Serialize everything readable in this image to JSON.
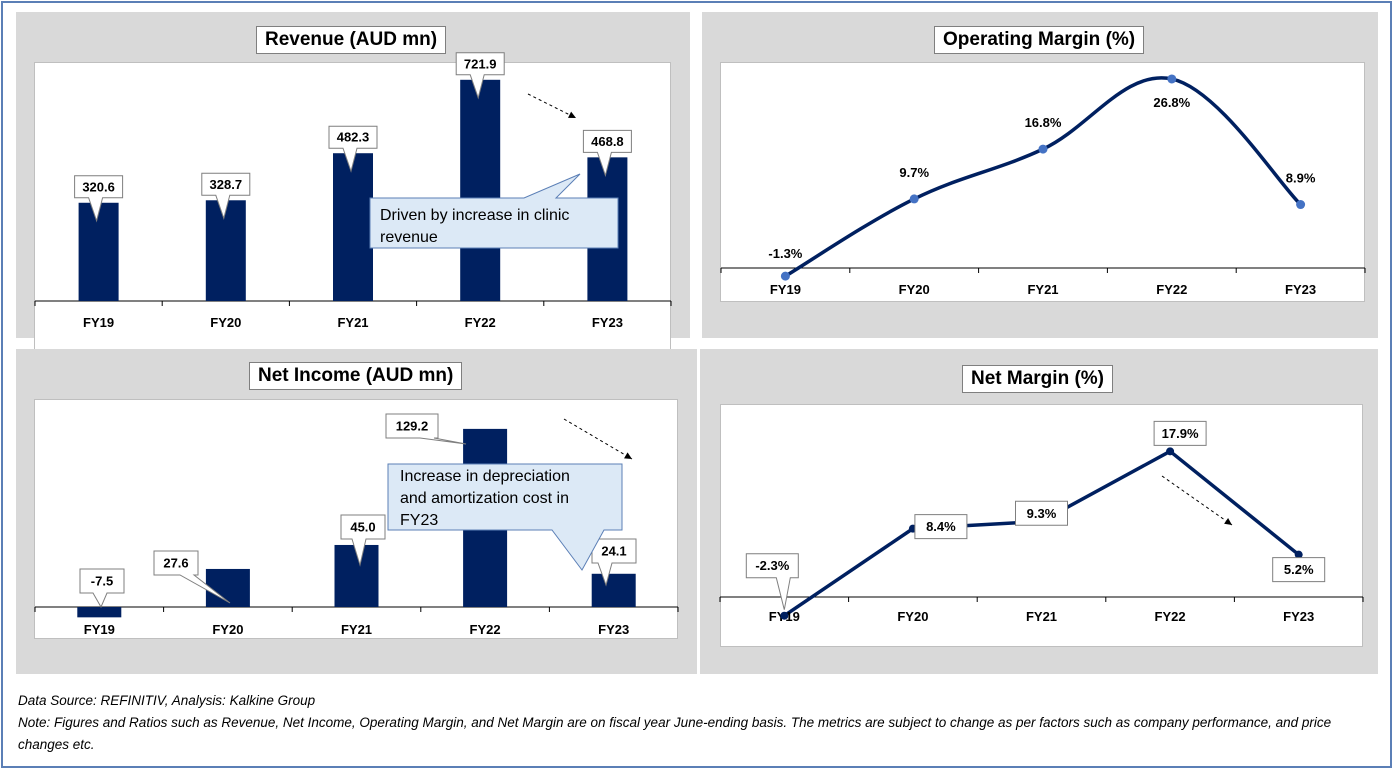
{
  "colors": {
    "bar": "#002060",
    "line": "#002060",
    "marker": "#4472c4",
    "callout": "#dce9f6",
    "callout_border": "#5b7fb6",
    "panel": "#d9d9d9"
  },
  "footer": {
    "source": "Data Source: REFINITIV, Analysis: Kalkine Group",
    "note": "Note: Figures and Ratios such as Revenue, Net Income, Operating Margin, and Net Margin are on fiscal year June-ending basis. The metrics are subject to change as per factors such as company performance, and price changes etc."
  },
  "chart_data": [
    {
      "id": "revenue",
      "type": "bar",
      "title": "Revenue (AUD mn)",
      "categories": [
        "FY19",
        "FY20",
        "FY21",
        "FY22",
        "FY23"
      ],
      "values": [
        320.6,
        328.7,
        482.3,
        721.9,
        468.8
      ],
      "labels": [
        "320.6",
        "328.7",
        "482.3",
        "721.9",
        "468.8"
      ],
      "ylim": [
        0,
        780
      ],
      "grid": false,
      "annotation": "Driven by increase in clinic revenue"
    },
    {
      "id": "operating_margin",
      "type": "line",
      "title": "Operating Margin (%)",
      "categories": [
        "FY19",
        "FY20",
        "FY21",
        "FY22",
        "FY23"
      ],
      "values": [
        -1.3,
        9.7,
        16.8,
        26.8,
        8.9
      ],
      "labels": [
        "-1.3%",
        "9.7%",
        "16.8%",
        "26.8%",
        "8.9%"
      ],
      "ylim": [
        -3,
        29
      ],
      "smooth": true,
      "grid": false
    },
    {
      "id": "net_income",
      "type": "bar",
      "title": "Net Income (AUD mn)",
      "categories": [
        "FY19",
        "FY20",
        "FY21",
        "FY22",
        "FY23"
      ],
      "values": [
        -7.5,
        27.6,
        45.0,
        129.2,
        24.1
      ],
      "labels": [
        "-7.5",
        "27.6",
        "45.0",
        "129.2",
        "24.1"
      ],
      "ylim": [
        -12,
        140
      ],
      "grid": false,
      "annotation": "Increase in depreciation and amortization cost in FY23"
    },
    {
      "id": "net_margin",
      "type": "line",
      "title": "Net Margin (%)",
      "categories": [
        "FY19",
        "FY20",
        "FY21",
        "FY22",
        "FY23"
      ],
      "values": [
        -2.3,
        8.4,
        9.3,
        17.9,
        5.2
      ],
      "labels": [
        "-2.3%",
        "8.4%",
        "9.3%",
        "17.9%",
        "5.2%"
      ],
      "ylim": [
        -3,
        21
      ],
      "smooth": false,
      "grid": false
    }
  ]
}
